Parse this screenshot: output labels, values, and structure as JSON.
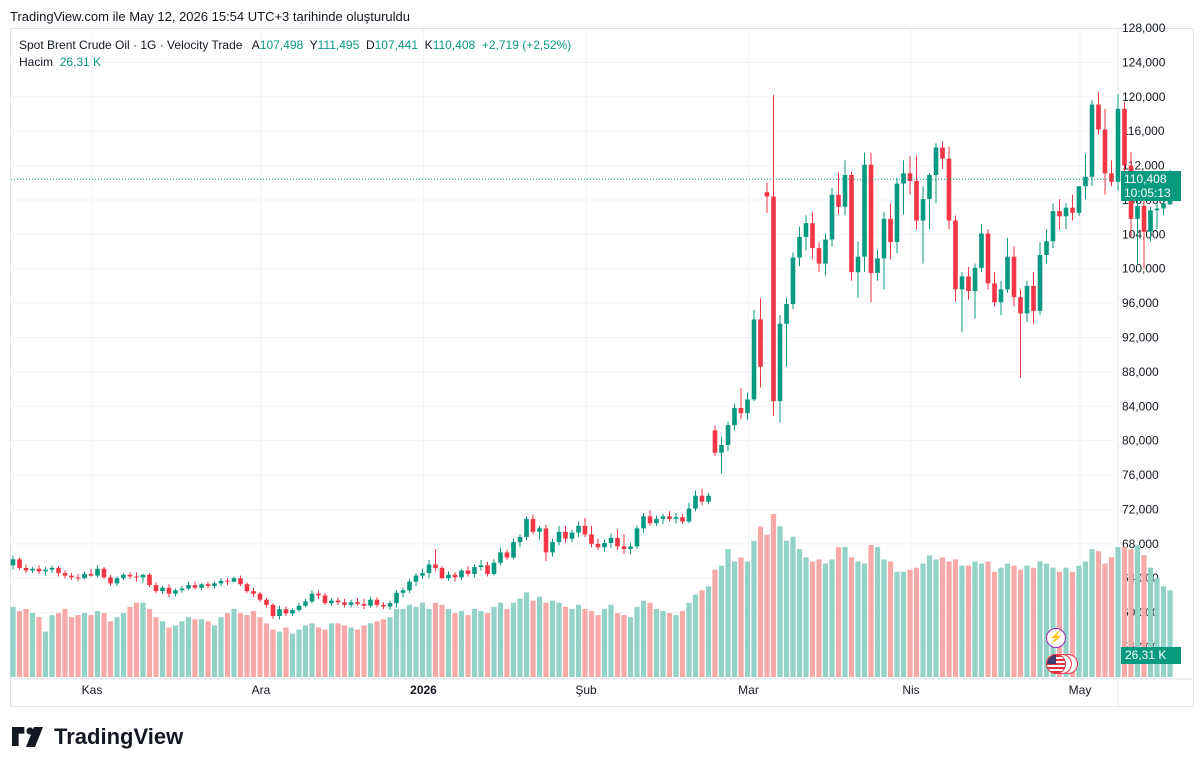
{
  "header": {
    "text": "TradingView.com ile May 12, 2026 15:54 UTC+3 tarihinde oluşturuldu"
  },
  "legend": {
    "symbol": "Spot Brent Crude Oil · 1G · Velocity Trade",
    "open_label": "A",
    "open": "107,498",
    "high_label": "Y",
    "high": "111,495",
    "low_label": "D",
    "low": "107,441",
    "close_label": "K",
    "close": "110,408",
    "change": "+2,719 (+2,52%)",
    "volume_label": "Hacim",
    "volume": "26,31 K"
  },
  "price_tag": {
    "price": "110,408",
    "countdown": "10:05:13"
  },
  "volume_tag": "26,31 K",
  "footer": {
    "brand": "TradingView"
  },
  "colors": {
    "up": "#089981",
    "down": "#f23645",
    "up_vol": "#92d2c7",
    "down_vol": "#f7a9a7",
    "grid": "#f0f3fa"
  },
  "chart_data": {
    "type": "candlestick",
    "y_axis": {
      "min": 56,
      "max": 128,
      "ticks": [
        "128,000",
        "124,000",
        "120,000",
        "116,000",
        "112,000",
        "108,000",
        "104,000",
        "100,000",
        "96,000",
        "92,000",
        "88,000",
        "84,000",
        "80,000",
        "76,000",
        "72,000",
        "68,000",
        "64,000",
        "60,000",
        "56,000"
      ]
    },
    "x_axis": {
      "labels": [
        {
          "text": "Kas",
          "index": 6,
          "bold": false
        },
        {
          "text": "Ara",
          "index": 32,
          "bold": false
        },
        {
          "text": "2026",
          "index": 57,
          "bold": true
        },
        {
          "text": "Şub",
          "index": 82,
          "bold": false
        },
        {
          "text": "Mar",
          "index": 107,
          "bold": false
        },
        {
          "text": "Nis",
          "index": 132,
          "bold": false
        },
        {
          "text": "May",
          "index": 158,
          "bold": false
        }
      ]
    },
    "last_price": 110.408,
    "candles": [
      [
        65.5,
        66.6,
        65.0,
        66.2,
        34
      ],
      [
        66.2,
        66.4,
        65.0,
        65.2,
        32
      ],
      [
        65.2,
        65.6,
        64.6,
        64.9,
        33
      ],
      [
        64.9,
        65.3,
        64.6,
        65.1,
        31
      ],
      [
        65.1,
        65.5,
        64.5,
        64.8,
        29
      ],
      [
        64.8,
        65.3,
        64.3,
        65.0,
        22
      ],
      [
        65.0,
        65.5,
        64.6,
        65.2,
        30
      ],
      [
        65.2,
        65.4,
        64.2,
        64.6,
        31
      ],
      [
        64.6,
        64.9,
        64.0,
        64.3,
        33
      ],
      [
        64.3,
        64.6,
        63.8,
        64.1,
        29
      ],
      [
        64.1,
        64.5,
        63.6,
        64.0,
        30
      ],
      [
        64.0,
        64.8,
        63.9,
        64.5,
        31
      ],
      [
        64.5,
        65.1,
        64.2,
        64.3,
        30
      ],
      [
        64.3,
        65.5,
        64.1,
        65.1,
        32
      ],
      [
        65.1,
        65.3,
        63.9,
        64.1,
        31
      ],
      [
        64.1,
        64.4,
        63.1,
        63.4,
        27
      ],
      [
        63.4,
        64.2,
        63.1,
        64.0,
        29
      ],
      [
        64.0,
        64.6,
        63.8,
        64.4,
        31
      ],
      [
        64.4,
        64.7,
        63.9,
        64.2,
        34
      ],
      [
        64.2,
        64.7,
        63.6,
        64.1,
        36
      ],
      [
        64.1,
        64.5,
        63.5,
        64.4,
        36
      ],
      [
        64.4,
        64.6,
        63.0,
        63.2,
        33
      ],
      [
        63.2,
        63.5,
        62.3,
        62.5,
        29
      ],
      [
        62.5,
        63.1,
        62.2,
        62.9,
        27
      ],
      [
        62.9,
        63.3,
        61.8,
        62.2,
        24
      ],
      [
        62.2,
        62.8,
        61.9,
        62.6,
        25
      ],
      [
        62.6,
        63.1,
        62.3,
        62.8,
        27
      ],
      [
        62.8,
        63.6,
        62.6,
        63.2,
        29
      ],
      [
        63.2,
        63.6,
        62.7,
        62.9,
        28
      ],
      [
        62.9,
        63.4,
        62.6,
        63.3,
        28
      ],
      [
        63.3,
        63.6,
        62.8,
        63.1,
        27
      ],
      [
        63.1,
        63.6,
        62.8,
        63.4,
        25
      ],
      [
        63.4,
        64.0,
        63.1,
        63.7,
        29
      ],
      [
        63.7,
        64.0,
        63.2,
        63.6,
        31
      ],
      [
        63.6,
        64.2,
        63.5,
        64.0,
        33
      ],
      [
        64.0,
        64.3,
        63.1,
        63.3,
        31
      ],
      [
        63.3,
        63.5,
        62.3,
        62.5,
        30
      ],
      [
        62.5,
        62.9,
        61.8,
        62.2,
        32
      ],
      [
        62.2,
        62.4,
        61.2,
        61.5,
        29
      ],
      [
        61.5,
        61.7,
        60.6,
        60.9,
        26
      ],
      [
        60.9,
        61.1,
        59.3,
        59.6,
        23
      ],
      [
        59.6,
        60.8,
        59.2,
        60.4,
        22
      ],
      [
        60.4,
        60.7,
        59.6,
        59.9,
        24
      ],
      [
        59.9,
        60.5,
        59.6,
        60.3,
        21
      ],
      [
        60.3,
        61.1,
        60.1,
        60.8,
        23
      ],
      [
        60.8,
        61.6,
        60.6,
        61.3,
        25
      ],
      [
        61.3,
        62.6,
        61.1,
        62.2,
        26
      ],
      [
        62.2,
        62.6,
        61.6,
        62.0,
        24
      ],
      [
        62.0,
        62.3,
        60.9,
        61.1,
        23
      ],
      [
        61.1,
        61.7,
        60.8,
        61.4,
        26
      ],
      [
        61.4,
        61.8,
        60.9,
        61.2,
        26
      ],
      [
        61.2,
        61.6,
        60.6,
        60.9,
        25
      ],
      [
        60.9,
        61.5,
        60.6,
        61.2,
        24
      ],
      [
        61.2,
        61.7,
        60.8,
        61.0,
        23
      ],
      [
        61.0,
        61.6,
        60.4,
        60.8,
        25
      ],
      [
        60.8,
        61.8,
        60.6,
        61.5,
        26
      ],
      [
        61.5,
        61.8,
        60.6,
        60.9,
        27
      ],
      [
        60.9,
        61.2,
        60.4,
        60.7,
        28
      ],
      [
        60.7,
        61.4,
        60.3,
        61.1,
        29
      ],
      [
        61.1,
        62.6,
        60.6,
        62.3,
        33
      ],
      [
        62.3,
        62.9,
        61.8,
        62.6,
        33
      ],
      [
        62.6,
        63.9,
        62.3,
        63.6,
        35
      ],
      [
        63.6,
        64.6,
        63.1,
        64.3,
        34
      ],
      [
        64.3,
        65.1,
        63.9,
        64.6,
        36
      ],
      [
        64.6,
        66.1,
        64.0,
        65.6,
        33
      ],
      [
        65.6,
        67.4,
        64.8,
        65.2,
        36
      ],
      [
        65.2,
        65.4,
        63.9,
        64.0,
        35
      ],
      [
        64.0,
        64.8,
        63.7,
        64.4,
        33
      ],
      [
        64.4,
        64.7,
        63.6,
        64.1,
        31
      ],
      [
        64.1,
        65.1,
        63.8,
        64.9,
        32
      ],
      [
        64.9,
        65.4,
        64.2,
        64.5,
        30
      ],
      [
        64.5,
        65.6,
        64.1,
        65.3,
        33
      ],
      [
        65.3,
        66.1,
        64.9,
        65.5,
        32
      ],
      [
        65.5,
        65.9,
        64.2,
        64.5,
        31
      ],
      [
        64.5,
        66.2,
        64.3,
        65.8,
        34
      ],
      [
        65.8,
        67.6,
        65.5,
        67.0,
        36
      ],
      [
        67.0,
        67.3,
        66.1,
        66.4,
        33
      ],
      [
        66.4,
        68.6,
        66.2,
        68.2,
        36
      ],
      [
        68.2,
        69.1,
        67.6,
        68.8,
        38
      ],
      [
        68.8,
        71.2,
        68.4,
        70.9,
        41
      ],
      [
        70.9,
        71.4,
        69.1,
        69.4,
        37
      ],
      [
        69.4,
        70.1,
        68.5,
        69.8,
        39
      ],
      [
        69.8,
        70.2,
        66.0,
        67.0,
        36
      ],
      [
        67.0,
        68.6,
        66.5,
        68.2,
        37
      ],
      [
        68.2,
        70.1,
        67.8,
        69.4,
        36
      ],
      [
        69.4,
        70.1,
        68.1,
        68.6,
        34
      ],
      [
        68.6,
        69.6,
        68.2,
        69.3,
        33
      ],
      [
        69.3,
        70.6,
        68.8,
        70.1,
        35
      ],
      [
        70.1,
        71.0,
        68.8,
        69.1,
        33
      ],
      [
        69.1,
        70.1,
        67.6,
        68.0,
        32
      ],
      [
        68.0,
        68.6,
        67.3,
        67.6,
        30
      ],
      [
        67.6,
        68.5,
        67.1,
        68.1,
        33
      ],
      [
        68.1,
        69.2,
        67.5,
        68.7,
        35
      ],
      [
        68.7,
        69.7,
        67.3,
        67.7,
        31
      ],
      [
        67.7,
        69.1,
        66.8,
        67.4,
        30
      ],
      [
        67.4,
        68.1,
        66.8,
        67.7,
        29
      ],
      [
        67.7,
        70.1,
        67.4,
        69.8,
        34
      ],
      [
        69.8,
        71.6,
        69.3,
        71.2,
        37
      ],
      [
        71.2,
        71.9,
        70.1,
        70.4,
        36
      ],
      [
        70.4,
        71.3,
        70.1,
        70.9,
        33
      ],
      [
        70.9,
        71.5,
        70.3,
        71.2,
        32
      ],
      [
        71.2,
        71.8,
        70.6,
        70.9,
        31
      ],
      [
        70.9,
        71.6,
        70.4,
        71.1,
        30
      ],
      [
        71.1,
        71.5,
        70.3,
        70.6,
        32
      ],
      [
        70.6,
        72.8,
        70.4,
        72.1,
        36
      ],
      [
        72.1,
        74.2,
        71.8,
        73.6,
        40
      ],
      [
        73.6,
        74.4,
        72.5,
        72.9,
        42
      ],
      [
        72.9,
        73.9,
        72.6,
        73.6,
        44
      ],
      [
        81.2,
        81.8,
        78.2,
        78.6,
        52
      ],
      [
        78.6,
        80.5,
        76.2,
        79.5,
        54
      ],
      [
        79.5,
        82.2,
        78.8,
        81.8,
        62
      ],
      [
        81.8,
        84.3,
        81.2,
        83.8,
        56
      ],
      [
        83.8,
        86.1,
        82.5,
        83.2,
        58
      ],
      [
        83.2,
        85.6,
        82.4,
        84.8,
        56
      ],
      [
        84.8,
        95.2,
        84.6,
        94.1,
        66
      ],
      [
        94.1,
        96.6,
        86.2,
        88.6,
        73
      ],
      [
        108.9,
        110.0,
        106.5,
        108.4,
        69
      ],
      [
        108.4,
        120.2,
        82.9,
        84.6,
        79
      ],
      [
        84.6,
        94.6,
        82.1,
        93.6,
        73
      ],
      [
        93.6,
        96.6,
        88.6,
        95.9,
        66
      ],
      [
        95.9,
        101.9,
        95.3,
        101.3,
        68
      ],
      [
        101.3,
        104.9,
        100.3,
        103.7,
        62
      ],
      [
        103.7,
        106.2,
        102.1,
        105.3,
        58
      ],
      [
        105.3,
        106.6,
        101.1,
        102.4,
        56
      ],
      [
        102.4,
        103.1,
        99.6,
        100.6,
        57
      ],
      [
        100.6,
        104.1,
        99.2,
        103.4,
        55
      ],
      [
        103.4,
        109.4,
        102.6,
        108.6,
        57
      ],
      [
        108.6,
        111.2,
        106.3,
        107.2,
        63
      ],
      [
        107.2,
        112.6,
        106.2,
        110.9,
        63
      ],
      [
        110.9,
        111.3,
        98.6,
        99.6,
        58
      ],
      [
        99.6,
        103.2,
        96.6,
        101.4,
        56
      ],
      [
        101.4,
        113.5,
        99.6,
        112.1,
        55
      ],
      [
        112.1,
        113.5,
        96.1,
        99.5,
        64
      ],
      [
        99.5,
        102.2,
        98.6,
        101.2,
        63
      ],
      [
        101.2,
        106.6,
        97.6,
        105.8,
        57
      ],
      [
        105.8,
        107.6,
        101.1,
        103.1,
        56
      ],
      [
        103.1,
        110.6,
        101.8,
        109.9,
        51
      ],
      [
        109.9,
        112.6,
        106.3,
        111.1,
        51
      ],
      [
        111.1,
        113.1,
        108.6,
        110.2,
        52
      ],
      [
        110.2,
        113.2,
        104.6,
        105.6,
        53
      ],
      [
        105.6,
        109.6,
        100.6,
        108.1,
        55
      ],
      [
        108.1,
        111.1,
        104.6,
        110.9,
        59
      ],
      [
        110.9,
        114.6,
        107.6,
        114.1,
        57
      ],
      [
        114.1,
        114.8,
        111.6,
        112.8,
        58
      ],
      [
        112.8,
        114.2,
        104.6,
        105.6,
        56
      ],
      [
        105.6,
        106.2,
        96.2,
        97.6,
        57
      ],
      [
        97.6,
        99.6,
        92.6,
        99.1,
        54
      ],
      [
        99.1,
        100.2,
        96.4,
        97.4,
        54
      ],
      [
        97.4,
        100.6,
        94.2,
        100.1,
        56
      ],
      [
        100.1,
        105.2,
        99.6,
        104.1,
        55
      ],
      [
        104.1,
        104.6,
        97.6,
        98.3,
        56
      ],
      [
        98.3,
        99.6,
        95.6,
        96.1,
        51
      ],
      [
        96.1,
        98.6,
        94.6,
        97.6,
        53
      ],
      [
        97.6,
        103.6,
        97.2,
        101.4,
        55
      ],
      [
        101.4,
        102.6,
        95.6,
        96.7,
        54
      ],
      [
        96.7,
        97.6,
        87.3,
        94.8,
        52
      ],
      [
        94.8,
        98.6,
        93.8,
        98.0,
        54
      ],
      [
        98.0,
        99.6,
        93.6,
        95.1,
        53
      ],
      [
        95.1,
        103.1,
        94.6,
        101.6,
        56
      ],
      [
        101.6,
        104.6,
        100.6,
        103.2,
        55
      ],
      [
        103.2,
        107.6,
        102.4,
        106.7,
        53
      ],
      [
        106.7,
        108.1,
        104.6,
        106.1,
        51
      ],
      [
        106.1,
        107.6,
        104.6,
        107.1,
        53
      ],
      [
        107.1,
        108.6,
        105.6,
        106.5,
        51
      ],
      [
        106.5,
        109.4,
        106.1,
        109.6,
        54
      ],
      [
        109.6,
        113.4,
        108.1,
        110.7,
        56
      ],
      [
        110.7,
        119.6,
        109.6,
        119.1,
        62
      ],
      [
        119.1,
        120.6,
        115.6,
        116.2,
        61
      ],
      [
        116.2,
        118.6,
        108.6,
        111.1,
        55
      ],
      [
        111.1,
        112.6,
        109.6,
        110.1,
        58
      ],
      [
        110.1,
        120.3,
        109.1,
        118.6,
        63
      ],
      [
        118.6,
        119.4,
        110.6,
        112.0,
        63
      ],
      [
        112.0,
        113.6,
        103.6,
        105.8,
        62
      ],
      [
        105.8,
        108.2,
        100.6,
        107.3,
        64
      ],
      [
        107.3,
        108.6,
        99.9,
        104.3,
        59
      ],
      [
        104.3,
        107.2,
        103.2,
        106.8,
        53
      ],
      [
        106.8,
        107.6,
        104.6,
        107.0,
        48
      ],
      [
        107.0,
        108.4,
        106.2,
        107.6,
        44
      ],
      [
        107.5,
        111.5,
        107.4,
        110.4,
        42
      ]
    ]
  }
}
